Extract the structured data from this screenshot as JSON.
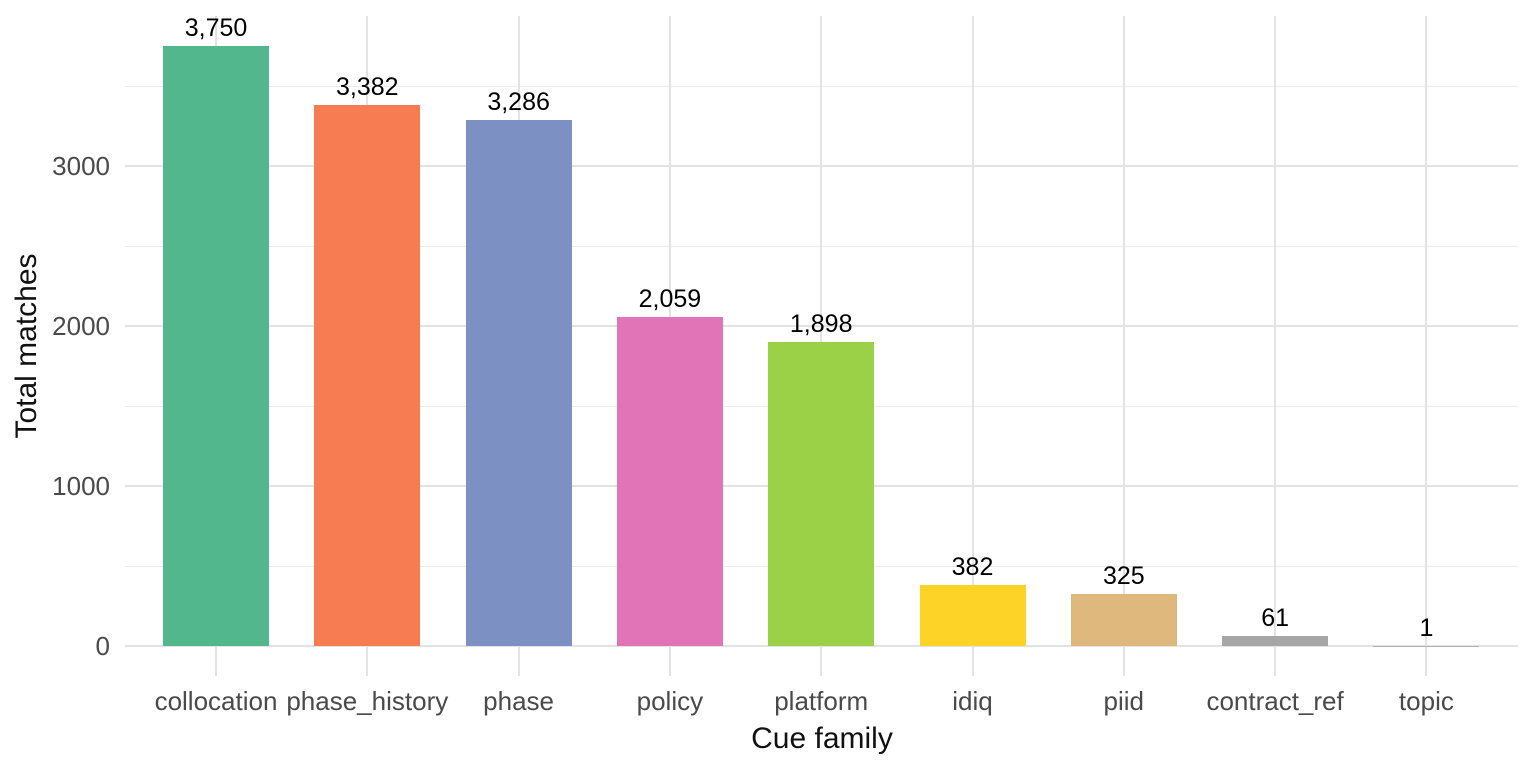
{
  "chart_data": {
    "type": "bar",
    "title": "",
    "xlabel": "Cue family",
    "ylabel": "Total matches",
    "categories": [
      "collocation",
      "phase_history",
      "phase",
      "policy",
      "platform",
      "idiq",
      "piid",
      "contract_ref",
      "topic"
    ],
    "values": [
      3750,
      3382,
      3286,
      2059,
      1898,
      382,
      325,
      61,
      1
    ],
    "value_labels": [
      "3,750",
      "3,382",
      "3,286",
      "2,059",
      "1,898",
      "382",
      "325",
      "61",
      "1"
    ],
    "bar_colors": [
      "#52b78d",
      "#f87c51",
      "#7c90c3",
      "#e173b7",
      "#9ad146",
      "#fdd327",
      "#dfb87e",
      "#a6a6a6",
      "#b3b3b3"
    ],
    "ylim": [
      0,
      3937.5
    ],
    "y_major_ticks": [
      0,
      1000,
      2000,
      3000
    ],
    "y_tick_labels": [
      "0",
      "1000",
      "2000",
      "3000"
    ],
    "y_minor_ticks": [
      500,
      1500,
      2500,
      3500
    ],
    "grid": "on",
    "legend": "none",
    "background_color": "#ffffff",
    "gridline_color_major": "#e3e3e3",
    "gridline_color_minor": "#ededed",
    "tick_label_color": "#4a4a4a",
    "axis_title_color": "#111111"
  }
}
